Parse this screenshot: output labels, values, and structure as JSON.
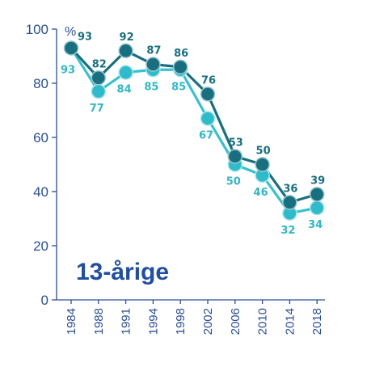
{
  "chart_data": {
    "type": "line",
    "title": "13-årige",
    "ylabel": "%",
    "ylim": [
      0,
      100
    ],
    "yticks": [
      0,
      20,
      40,
      60,
      80,
      100
    ],
    "categories": [
      "1984",
      "1988",
      "1991",
      "1994",
      "1998",
      "2002",
      "2006",
      "2010",
      "2014",
      "2018"
    ],
    "series": [
      {
        "color": "#186f80",
        "values": [
          93,
          82,
          92,
          87,
          86,
          76,
          53,
          50,
          36,
          39
        ]
      },
      {
        "color": "#37c1cf",
        "values": [
          93,
          77,
          84,
          85,
          85,
          67,
          50,
          46,
          32,
          34
        ]
      }
    ],
    "grid": false
  }
}
